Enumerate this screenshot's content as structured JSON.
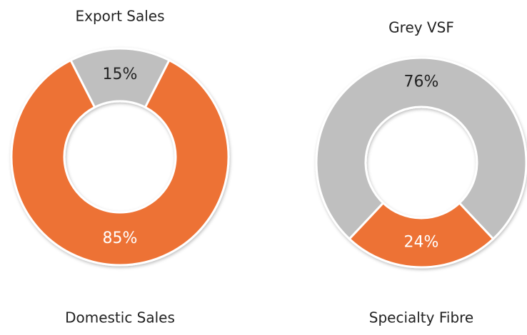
{
  "chart_data": [
    {
      "type": "pie",
      "categories": [
        "Export Sales",
        "Domestic Sales"
      ],
      "values": [
        15,
        85
      ],
      "value_labels": [
        "15%",
        "85%"
      ],
      "colors": [
        "#bfbfbf",
        "#ed7234"
      ]
    },
    {
      "type": "pie",
      "categories": [
        "Grey VSF",
        "Specialty Fibre"
      ],
      "values": [
        76,
        24
      ],
      "value_labels": [
        "76%",
        "24%"
      ],
      "colors": [
        "#bfbfbf",
        "#ed7234"
      ]
    }
  ]
}
